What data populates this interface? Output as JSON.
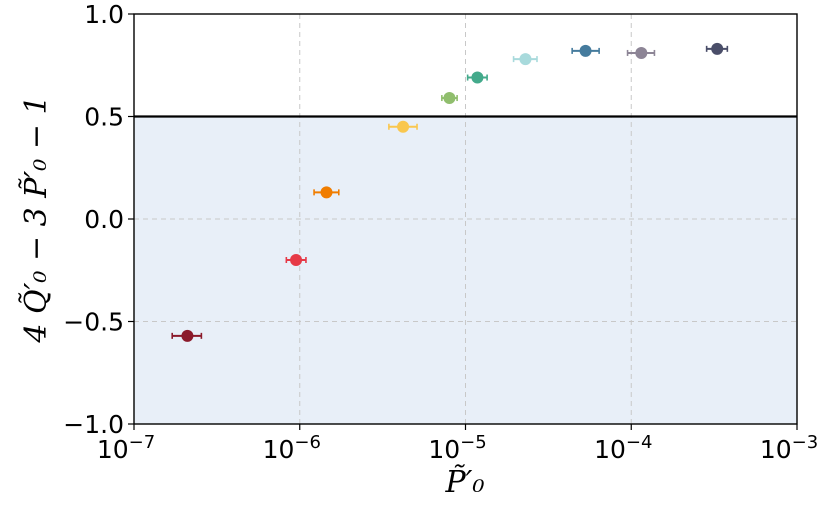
{
  "chart_data": {
    "type": "scatter",
    "x_scale": "log",
    "xlim": [
      1e-07,
      0.001
    ],
    "ylim": [
      -1.0,
      1.0
    ],
    "grid": true,
    "grid_style": "dashed",
    "reference_line": 0.5,
    "shaded_region": {
      "from": -1.0,
      "to": 0.5,
      "color": "#e8eff8"
    },
    "xlabel": "P̃′₀",
    "ylabel": "4 Q̃′₀ − 3 P̃′₀ − 1",
    "x_ticks": [
      {
        "value": 1e-07,
        "base": "10",
        "exp": "−7"
      },
      {
        "value": 1e-06,
        "base": "10",
        "exp": "−6"
      },
      {
        "value": 1e-05,
        "base": "10",
        "exp": "−5"
      },
      {
        "value": 0.0001,
        "base": "10",
        "exp": "−4"
      },
      {
        "value": 0.001,
        "base": "10",
        "exp": "−3"
      }
    ],
    "y_ticks": [
      {
        "value": 1.0,
        "label": "1.0"
      },
      {
        "value": 0.5,
        "label": "0.5"
      },
      {
        "value": 0.0,
        "label": "0.0"
      },
      {
        "value": -0.5,
        "label": "−0.5"
      },
      {
        "value": -1.0,
        "label": "−1.0"
      }
    ],
    "points": [
      {
        "x": 2.1e-07,
        "y": -0.57,
        "xerr_lo": 1.7e-07,
        "xerr_hi": 2.55e-07,
        "color": "#8b1a2b"
      },
      {
        "x": 9.5e-07,
        "y": -0.2,
        "xerr_lo": 8.3e-07,
        "xerr_hi": 1.09e-06,
        "color": "#e63946"
      },
      {
        "x": 1.45e-06,
        "y": 0.13,
        "xerr_lo": 1.22e-06,
        "xerr_hi": 1.72e-06,
        "color": "#f07d00"
      },
      {
        "x": 4.2e-06,
        "y": 0.45,
        "xerr_lo": 3.45e-06,
        "xerr_hi": 5.1e-06,
        "color": "#f9c74f"
      },
      {
        "x": 8e-06,
        "y": 0.59,
        "xerr_lo": 7.2e-06,
        "xerr_hi": 8.9e-06,
        "color": "#90be6d"
      },
      {
        "x": 1.18e-05,
        "y": 0.69,
        "xerr_lo": 1.03e-05,
        "xerr_hi": 1.35e-05,
        "color": "#43aa8b"
      },
      {
        "x": 2.3e-05,
        "y": 0.78,
        "xerr_lo": 1.95e-05,
        "xerr_hi": 2.7e-05,
        "color": "#a8dadc"
      },
      {
        "x": 5.3e-05,
        "y": 0.82,
        "xerr_lo": 4.4e-05,
        "xerr_hi": 6.4e-05,
        "color": "#457b9d"
      },
      {
        "x": 0.000115,
        "y": 0.81,
        "xerr_lo": 9.5e-05,
        "xerr_hi": 0.000138,
        "color": "#8d8596"
      },
      {
        "x": 0.00033,
        "y": 0.83,
        "xerr_lo": 0.000285,
        "xerr_hi": 0.00038,
        "color": "#4a4e69"
      }
    ]
  }
}
